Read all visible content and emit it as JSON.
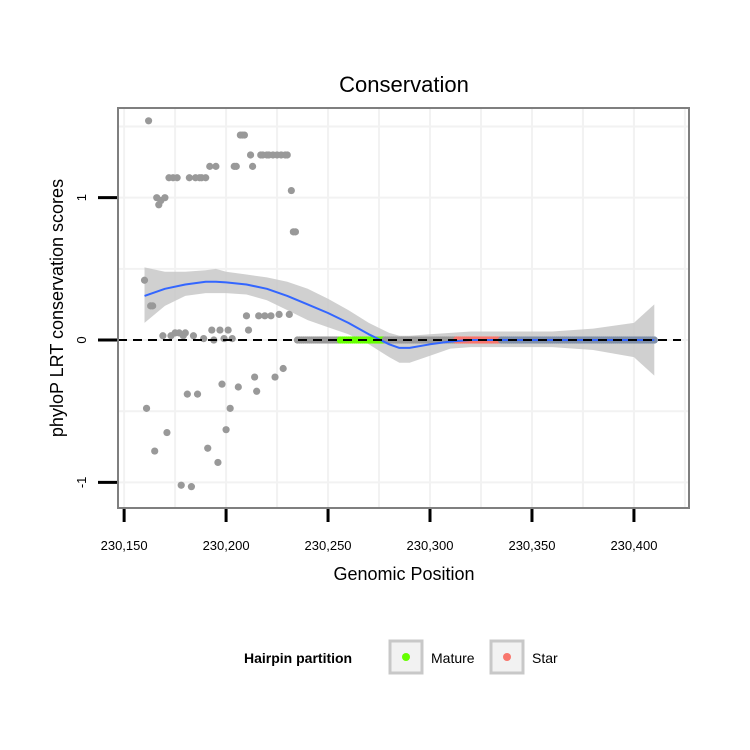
{
  "chart_data": {
    "type": "scatter",
    "title": "Conservation",
    "xlabel": "Genomic Position",
    "ylabel": "phyloP LRT conservation scores",
    "xlim": [
      230147,
      230427
    ],
    "ylim": [
      -1.18,
      1.63
    ],
    "x_ticks": [
      230150,
      230200,
      230250,
      230300,
      230350,
      230400
    ],
    "x_tick_labels": [
      "230,150",
      "230,200",
      "230,250",
      "230,300",
      "230,350",
      "230,400"
    ],
    "y_ticks": [
      -1,
      0,
      1
    ],
    "y_tick_labels": [
      "-1",
      "0",
      "1"
    ],
    "grid": true,
    "reference_line": {
      "y": 0,
      "style": "dashed"
    },
    "colors": {
      "points": "#999999",
      "smooth": "#3366ff",
      "ribbon": "#c8c8c8",
      "mature": "#66ff00",
      "star": "#f8766d",
      "panel_border": "#7f7f7f",
      "grid": "#f2f2f2"
    },
    "legend": {
      "title": "Hairpin partition",
      "position": "bottom",
      "entries": [
        {
          "label": "Mature",
          "color": "#66ff00"
        },
        {
          "label": "Star",
          "color": "#f8766d"
        }
      ]
    },
    "points": [
      [
        230160,
        0.42
      ],
      [
        230161,
        -0.48
      ],
      [
        230162,
        1.54
      ],
      [
        230163,
        0.24
      ],
      [
        230164,
        0.24
      ],
      [
        230165,
        -0.78
      ],
      [
        230166,
        1.0
      ],
      [
        230167,
        0.95
      ],
      [
        230168,
        0.98
      ],
      [
        230169,
        0.03
      ],
      [
        230170,
        1.0
      ],
      [
        230171,
        -0.65
      ],
      [
        230172,
        1.14
      ],
      [
        230173,
        0.03
      ],
      [
        230174,
        1.14
      ],
      [
        230175,
        0.05
      ],
      [
        230176,
        1.14
      ],
      [
        230177,
        0.05
      ],
      [
        230178,
        -1.02
      ],
      [
        230179,
        0.03
      ],
      [
        230180,
        0.05
      ],
      [
        230181,
        -0.38
      ],
      [
        230182,
        1.14
      ],
      [
        230183,
        -1.03
      ],
      [
        230184,
        0.03
      ],
      [
        230185,
        1.14
      ],
      [
        230186,
        -0.38
      ],
      [
        230187,
        1.14
      ],
      [
        230188,
        1.14
      ],
      [
        230189,
        0.01
      ],
      [
        230190,
        1.14
      ],
      [
        230191,
        -0.76
      ],
      [
        230192,
        1.22
      ],
      [
        230193,
        0.07
      ],
      [
        230194,
        0.0
      ],
      [
        230195,
        1.22
      ],
      [
        230196,
        -0.86
      ],
      [
        230197,
        0.07
      ],
      [
        230198,
        -0.31
      ],
      [
        230199,
        0.01
      ],
      [
        230200,
        -0.63
      ],
      [
        230201,
        0.07
      ],
      [
        230202,
        -0.48
      ],
      [
        230203,
        0.01
      ],
      [
        230204,
        1.22
      ],
      [
        230205,
        1.22
      ],
      [
        230206,
        -0.33
      ],
      [
        230207,
        1.44
      ],
      [
        230208,
        1.44
      ],
      [
        230209,
        1.44
      ],
      [
        230210,
        0.17
      ],
      [
        230211,
        0.07
      ],
      [
        230212,
        1.3
      ],
      [
        230213,
        1.22
      ],
      [
        230214,
        -0.26
      ],
      [
        230215,
        -0.36
      ],
      [
        230216,
        0.17
      ],
      [
        230217,
        1.3
      ],
      [
        230218,
        1.3
      ],
      [
        230219,
        0.17
      ],
      [
        230220,
        1.3
      ],
      [
        230221,
        1.3
      ],
      [
        230222,
        0.17
      ],
      [
        230223,
        1.3
      ],
      [
        230224,
        -0.26
      ],
      [
        230225,
        1.3
      ],
      [
        230226,
        0.18
      ],
      [
        230227,
        1.3
      ],
      [
        230228,
        -0.2
      ],
      [
        230229,
        1.3
      ],
      [
        230230,
        1.3
      ],
      [
        230231,
        0.18
      ],
      [
        230232,
        1.05
      ],
      [
        230233,
        0.76
      ],
      [
        230234,
        0.76
      ]
    ],
    "flat_points": {
      "x_start": 230235,
      "x_end": 230410,
      "y": 0
    },
    "mature_range": [
      230256,
      230277
    ],
    "star_range": [
      230313,
      230334
    ],
    "blue_range": [
      230334,
      230410
    ],
    "smooth": {
      "x": [
        230160,
        230170,
        230180,
        230190,
        230195,
        230200,
        230210,
        230220,
        230230,
        230240,
        230250,
        230260,
        230270,
        230280,
        230285,
        230290,
        230300,
        230310,
        230320,
        230340,
        230360,
        230380,
        230400,
        230410
      ],
      "y": [
        0.31,
        0.36,
        0.39,
        0.41,
        0.41,
        0.405,
        0.39,
        0.36,
        0.31,
        0.25,
        0.19,
        0.12,
        0.04,
        -0.03,
        -0.055,
        -0.055,
        -0.03,
        -0.01,
        0.0,
        0.0,
        0.0,
        0.0,
        0.0,
        0.0
      ],
      "upper": [
        0.51,
        0.48,
        0.48,
        0.49,
        0.5,
        0.48,
        0.46,
        0.44,
        0.41,
        0.36,
        0.29,
        0.21,
        0.12,
        0.05,
        0.03,
        0.03,
        0.04,
        0.05,
        0.06,
        0.06,
        0.06,
        0.08,
        0.12,
        0.25
      ],
      "lower": [
        0.12,
        0.24,
        0.31,
        0.33,
        0.33,
        0.33,
        0.32,
        0.28,
        0.21,
        0.14,
        0.09,
        0.04,
        -0.03,
        -0.12,
        -0.16,
        -0.16,
        -0.11,
        -0.06,
        -0.05,
        -0.05,
        -0.05,
        -0.07,
        -0.12,
        -0.25
      ]
    }
  }
}
